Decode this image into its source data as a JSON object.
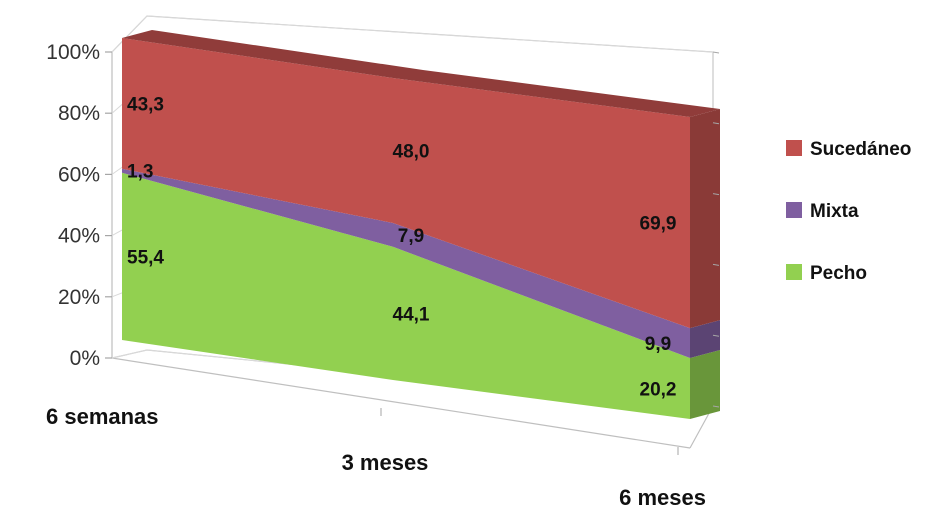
{
  "chart_data": {
    "type": "area",
    "stacked": "percent",
    "three_d": true,
    "categories": [
      "6 semanas",
      "3 meses",
      "6 meses"
    ],
    "series": [
      {
        "name": "Pecho",
        "values": [
          55.4,
          44.1,
          20.2
        ],
        "labels": [
          "55,4",
          "44,1",
          "20,2"
        ],
        "color": "#92d050"
      },
      {
        "name": "Mixta",
        "values": [
          1.3,
          7.9,
          9.9
        ],
        "labels": [
          "1,3",
          "7,9",
          "9,9"
        ],
        "color": "#7f5fa0"
      },
      {
        "name": "Sucedáneo",
        "values": [
          43.3,
          48.0,
          69.9
        ],
        "labels": [
          "43,3",
          "48,0",
          "69,9"
        ],
        "color": "#c0504d"
      }
    ],
    "y_ticks": [
      "0%",
      "20%",
      "40%",
      "60%",
      "80%",
      "100%"
    ],
    "ylim": [
      0,
      100
    ],
    "grid": true,
    "legend": {
      "position": "right",
      "items": [
        "Sucedáneo",
        "Mixta",
        "Pecho"
      ]
    }
  }
}
